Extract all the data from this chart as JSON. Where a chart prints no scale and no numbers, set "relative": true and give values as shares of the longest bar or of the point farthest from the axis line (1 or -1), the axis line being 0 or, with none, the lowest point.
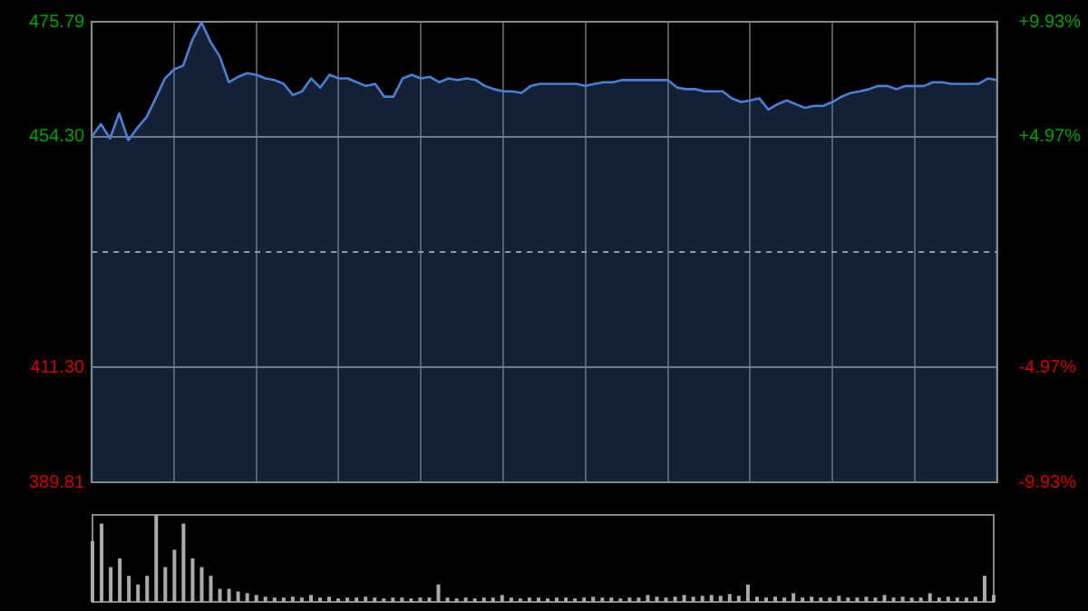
{
  "chart_data": [
    {
      "type": "area",
      "categories": [
        null,
        null,
        null,
        null,
        null,
        null,
        null,
        null,
        null,
        null,
        null,
        null,
        null,
        null,
        null,
        null,
        null,
        null,
        null,
        null,
        null,
        null,
        null,
        null,
        null,
        null,
        null,
        null,
        null,
        null,
        null,
        null,
        null,
        null,
        null,
        null,
        null,
        null,
        null,
        null,
        null,
        null,
        null,
        null,
        null,
        null,
        null,
        null,
        null,
        null,
        null,
        null,
        null,
        null,
        null,
        null,
        null,
        null,
        null,
        null,
        null,
        null,
        null,
        null,
        null,
        null,
        null,
        null,
        null,
        null,
        null,
        null,
        null,
        null,
        null,
        null,
        null,
        null,
        null,
        null,
        null,
        null,
        null,
        null,
        null,
        null,
        null,
        null,
        null,
        null,
        null,
        null,
        null,
        null,
        null,
        null,
        null,
        null,
        null,
        null
      ],
      "series": [
        {
          "color": "#4a7fd4",
          "values": [
            454.3,
            456.7,
            454.0,
            458.7,
            453.7,
            456.0,
            458.0,
            461.5,
            465.2,
            466.9,
            467.6,
            472.4,
            475.7,
            472.0,
            469.3,
            464.5,
            465.5,
            466.2,
            465.9,
            465.2,
            464.9,
            464.2,
            462.1,
            462.8,
            465.2,
            463.5,
            465.9,
            465.2,
            465.2,
            464.5,
            463.8,
            464.2,
            461.8,
            461.8,
            465.2,
            465.9,
            465.2,
            465.5,
            464.5,
            465.2,
            464.9,
            465.2,
            464.9,
            463.8,
            463.2,
            462.8,
            462.8,
            462.5,
            463.8,
            464.2,
            464.2,
            464.2,
            464.2,
            464.2,
            463.8,
            464.2,
            464.5,
            464.5,
            464.9,
            464.9,
            464.9,
            464.9,
            464.9,
            464.9,
            463.5,
            463.2,
            463.2,
            462.8,
            462.8,
            462.8,
            461.5,
            460.8,
            461.1,
            461.5,
            459.4,
            460.4,
            461.1,
            460.4,
            459.7,
            460.1,
            460.1,
            460.8,
            461.8,
            462.5,
            462.8,
            463.2,
            463.8,
            463.8,
            463.2,
            463.8,
            463.8,
            463.8,
            464.5,
            464.5,
            464.2,
            464.2,
            464.2,
            464.2,
            465.2,
            464.9
          ]
        }
      ],
      "ylim": [
        389.81,
        475.79
      ],
      "yticks": [
        389.81,
        {
          "value": 411.3,
          "label": "411.30"
        },
        {
          "value": 454.3,
          "label": "454.30"
        },
        475.79
      ],
      "y2lim": [
        -9.93,
        9.93
      ],
      "y2ticks": [
        {
          "value": -9.93,
          "label": "-9.93%"
        },
        {
          "value": -4.97,
          "label": "-4.97%"
        },
        {
          "value": 4.97,
          "label": "+4.97%"
        },
        {
          "value": 9.93,
          "label": "+9.93%"
        }
      ],
      "ref_lines": [
        {
          "axis": "y",
          "value": 432.8,
          "line_style": "dashed"
        }
      ],
      "grid": true,
      "legend": false,
      "tick_labels": "y"
    },
    {
      "type": "bar",
      "relative": true,
      "categories": [
        null,
        null,
        null,
        null,
        null,
        null,
        null,
        null,
        null,
        null,
        null,
        null,
        null,
        null,
        null,
        null,
        null,
        null,
        null,
        null,
        null,
        null,
        null,
        null,
        null,
        null,
        null,
        null,
        null,
        null,
        null,
        null,
        null,
        null,
        null,
        null,
        null,
        null,
        null,
        null,
        null,
        null,
        null,
        null,
        null,
        null,
        null,
        null,
        null,
        null,
        null,
        null,
        null,
        null,
        null,
        null,
        null,
        null,
        null,
        null,
        null,
        null,
        null,
        null,
        null,
        null,
        null,
        null,
        null,
        null,
        null,
        null,
        null,
        null,
        null,
        null,
        null,
        null,
        null,
        null,
        null,
        null,
        null,
        null,
        null,
        null,
        null,
        null,
        null,
        null,
        null,
        null,
        null,
        null,
        null,
        null,
        null,
        null,
        null,
        null
      ],
      "series": [
        {
          "color": "#aaaaaa",
          "values": [
            0.7,
            0.9,
            0.4,
            0.5,
            0.3,
            0.2,
            0.3,
            1.0,
            0.4,
            0.6,
            0.9,
            0.5,
            0.4,
            0.3,
            0.15,
            0.15,
            0.12,
            0.1,
            0.08,
            0.06,
            0.05,
            0.05,
            0.06,
            0.05,
            0.08,
            0.05,
            0.06,
            0.04,
            0.05,
            0.05,
            0.06,
            0.05,
            0.04,
            0.05,
            0.05,
            0.04,
            0.05,
            0.05,
            0.2,
            0.05,
            0.04,
            0.05,
            0.04,
            0.05,
            0.05,
            0.08,
            0.05,
            0.04,
            0.05,
            0.05,
            0.04,
            0.05,
            0.05,
            0.04,
            0.05,
            0.06,
            0.05,
            0.05,
            0.04,
            0.05,
            0.05,
            0.08,
            0.06,
            0.05,
            0.06,
            0.08,
            0.06,
            0.07,
            0.08,
            0.07,
            0.09,
            0.07,
            0.2,
            0.06,
            0.05,
            0.06,
            0.05,
            0.1,
            0.05,
            0.06,
            0.05,
            0.05,
            0.07,
            0.05,
            0.05,
            0.06,
            0.05,
            0.08,
            0.05,
            0.06,
            0.05,
            0.05,
            0.1,
            0.05,
            0.06,
            0.05,
            0.05,
            0.06,
            0.3,
            0.08
          ]
        }
      ],
      "legend": false,
      "tick_labels": false
    }
  ]
}
